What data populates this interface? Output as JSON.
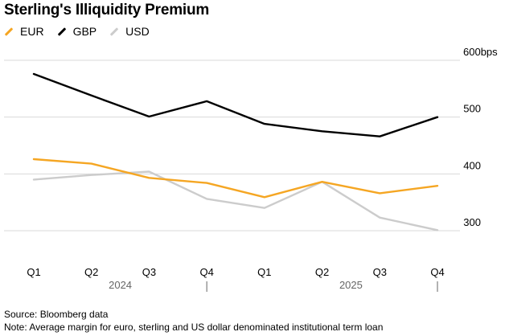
{
  "title": "Sterling's Illiquidity Premium",
  "footer": {
    "source": "Source: Bloomberg data",
    "note": "Note: Average margin for euro, sterling and US dollar denominated institutional term loan"
  },
  "chart_data": {
    "type": "line",
    "title": "Sterling's Illiquidity Premium",
    "categories": [
      "Q1",
      "Q2",
      "Q3",
      "Q4",
      "Q1",
      "Q2",
      "Q3",
      "Q4"
    ],
    "year_labels": [
      "2024",
      "2025"
    ],
    "y_ticks": [
      {
        "value": 600,
        "label": "600bps"
      },
      {
        "value": 500,
        "label": "500"
      },
      {
        "value": 400,
        "label": "400"
      },
      {
        "value": 300,
        "label": "300"
      }
    ],
    "ylim": [
      300,
      600
    ],
    "ylabel": "bps",
    "grid": true,
    "legend_position": "top-left",
    "series": [
      {
        "name": "EUR",
        "color": "#f5a623",
        "values": [
          426,
          418,
          393,
          384,
          359,
          386,
          366,
          379
        ]
      },
      {
        "name": "GBP",
        "color": "#000000",
        "values": [
          576,
          538,
          501,
          528,
          488,
          475,
          466,
          500
        ]
      },
      {
        "name": "USD",
        "color": "#cccccc",
        "values": [
          390,
          398,
          404,
          356,
          340,
          386,
          323,
          301
        ]
      }
    ]
  }
}
